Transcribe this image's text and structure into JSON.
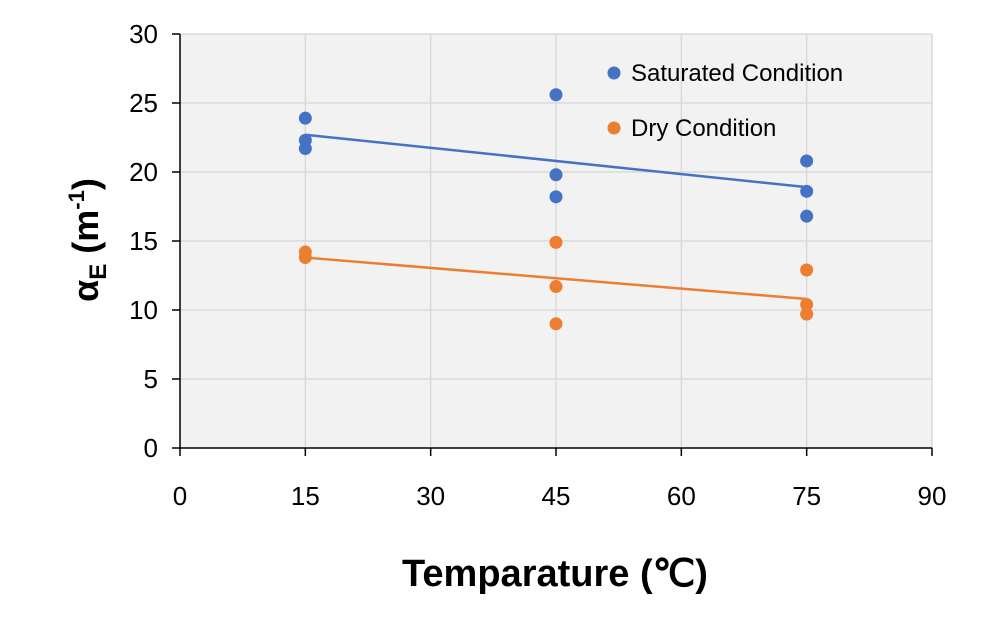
{
  "chart_data": {
    "type": "scatter",
    "title": "",
    "xlabel": "Temparature (℃)",
    "ylabel": {
      "symbol": "α",
      "subscript": "E",
      "unit_open": " (m",
      "unit_sup": "-1",
      "unit_close": ")"
    },
    "xlim": [
      0,
      90
    ],
    "ylim": [
      0,
      30
    ],
    "xticks": [
      0,
      15,
      30,
      45,
      60,
      75,
      90
    ],
    "yticks": [
      0,
      5,
      10,
      15,
      20,
      25,
      30
    ],
    "grid": true,
    "legend_position": "top-right",
    "plot_background": "#f2f2f2",
    "grid_color": "#d9d9d9",
    "series": [
      {
        "name": "Saturated Condition",
        "color": "#4472c4",
        "points": [
          [
            15,
            23.9
          ],
          [
            15,
            22.3
          ],
          [
            15,
            21.7
          ],
          [
            45,
            25.6
          ],
          [
            45,
            19.8
          ],
          [
            45,
            18.2
          ],
          [
            75,
            20.8
          ],
          [
            75,
            18.6
          ],
          [
            75,
            16.8
          ]
        ],
        "trendline": [
          [
            15,
            22.7
          ],
          [
            75,
            18.9
          ]
        ]
      },
      {
        "name": "Dry Condition",
        "color": "#ed7d31",
        "points": [
          [
            15,
            14.2
          ],
          [
            15,
            13.8
          ],
          [
            45,
            14.9
          ],
          [
            45,
            11.7
          ],
          [
            45,
            9.0
          ],
          [
            75,
            12.9
          ],
          [
            75,
            10.4
          ],
          [
            75,
            9.7
          ]
        ],
        "trendline": [
          [
            15,
            13.8
          ],
          [
            75,
            10.8
          ]
        ]
      }
    ]
  }
}
